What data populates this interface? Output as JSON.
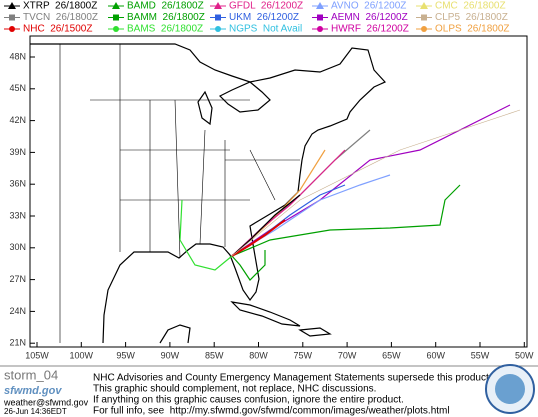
{
  "legend": [
    {
      "label": "XTRP  26/1800Z",
      "color": "#000000",
      "marker": "tri"
    },
    {
      "label": "BAMD  26/1800Z",
      "color": "#00a000",
      "marker": "tri"
    },
    {
      "label": "GFDL  26/1200Z",
      "color": "#e0208a",
      "marker": "tri"
    },
    {
      "label": "AVNO  26/1200Z",
      "color": "#7fa0ff",
      "marker": "tri"
    },
    {
      "label": "CMC  26/1800Z",
      "color": "#e8e070",
      "marker": "tri"
    },
    {
      "label": "TVCN  26/1800Z",
      "color": "#808080",
      "marker": "sq"
    },
    {
      "label": "BAMM  26/1800Z",
      "color": "#00a000",
      "marker": "sq"
    },
    {
      "label": "UKM  26/1200Z",
      "color": "#3060e0",
      "marker": "sq"
    },
    {
      "label": "AEMN  26/1200Z",
      "color": "#a000c0",
      "marker": "sq"
    },
    {
      "label": "CLP5  26/1800Z",
      "color": "#c8b090",
      "marker": "sq"
    },
    {
      "label": "NHC  26/1500Z",
      "color": "#e00000",
      "marker": "dot"
    },
    {
      "label": "BAMS  26/1800Z",
      "color": "#30e030",
      "marker": "dot"
    },
    {
      "label": "NGPS  Not Avail",
      "color": "#30c0e0",
      "marker": "dot"
    },
    {
      "label": "HWRF  26/1200Z",
      "color": "#d000a0",
      "marker": "dot"
    },
    {
      "label": "OLPS  26/1800Z",
      "color": "#f0a040",
      "marker": "dot"
    }
  ],
  "latitude_labels": [
    "48N",
    "45N",
    "42N",
    "39N",
    "36N",
    "33N",
    "30N",
    "27N",
    "24N",
    "21N"
  ],
  "longitude_labels": [
    "105W",
    "100W",
    "95W",
    "90W",
    "85W",
    "80W",
    "75W",
    "70W",
    "65W",
    "60W",
    "55W",
    "50W"
  ],
  "footer": {
    "storm": "storm_04",
    "brand": "sfwmd.gov",
    "email": "weather@sfwmd.gov",
    "timestamp": "26-Jun 14:36EDT",
    "notice": [
      "NHC Advisories and County Emergency Management Statements supersede this product.",
      "This graphic should complement, not replace, NHC discussions.",
      "If anything on this graphic causes confusion, ignore the entire product.",
      "For full info, see  http://my.sfwmd.gov/sfwmd/common/images/weather/plots.html"
    ]
  }
}
